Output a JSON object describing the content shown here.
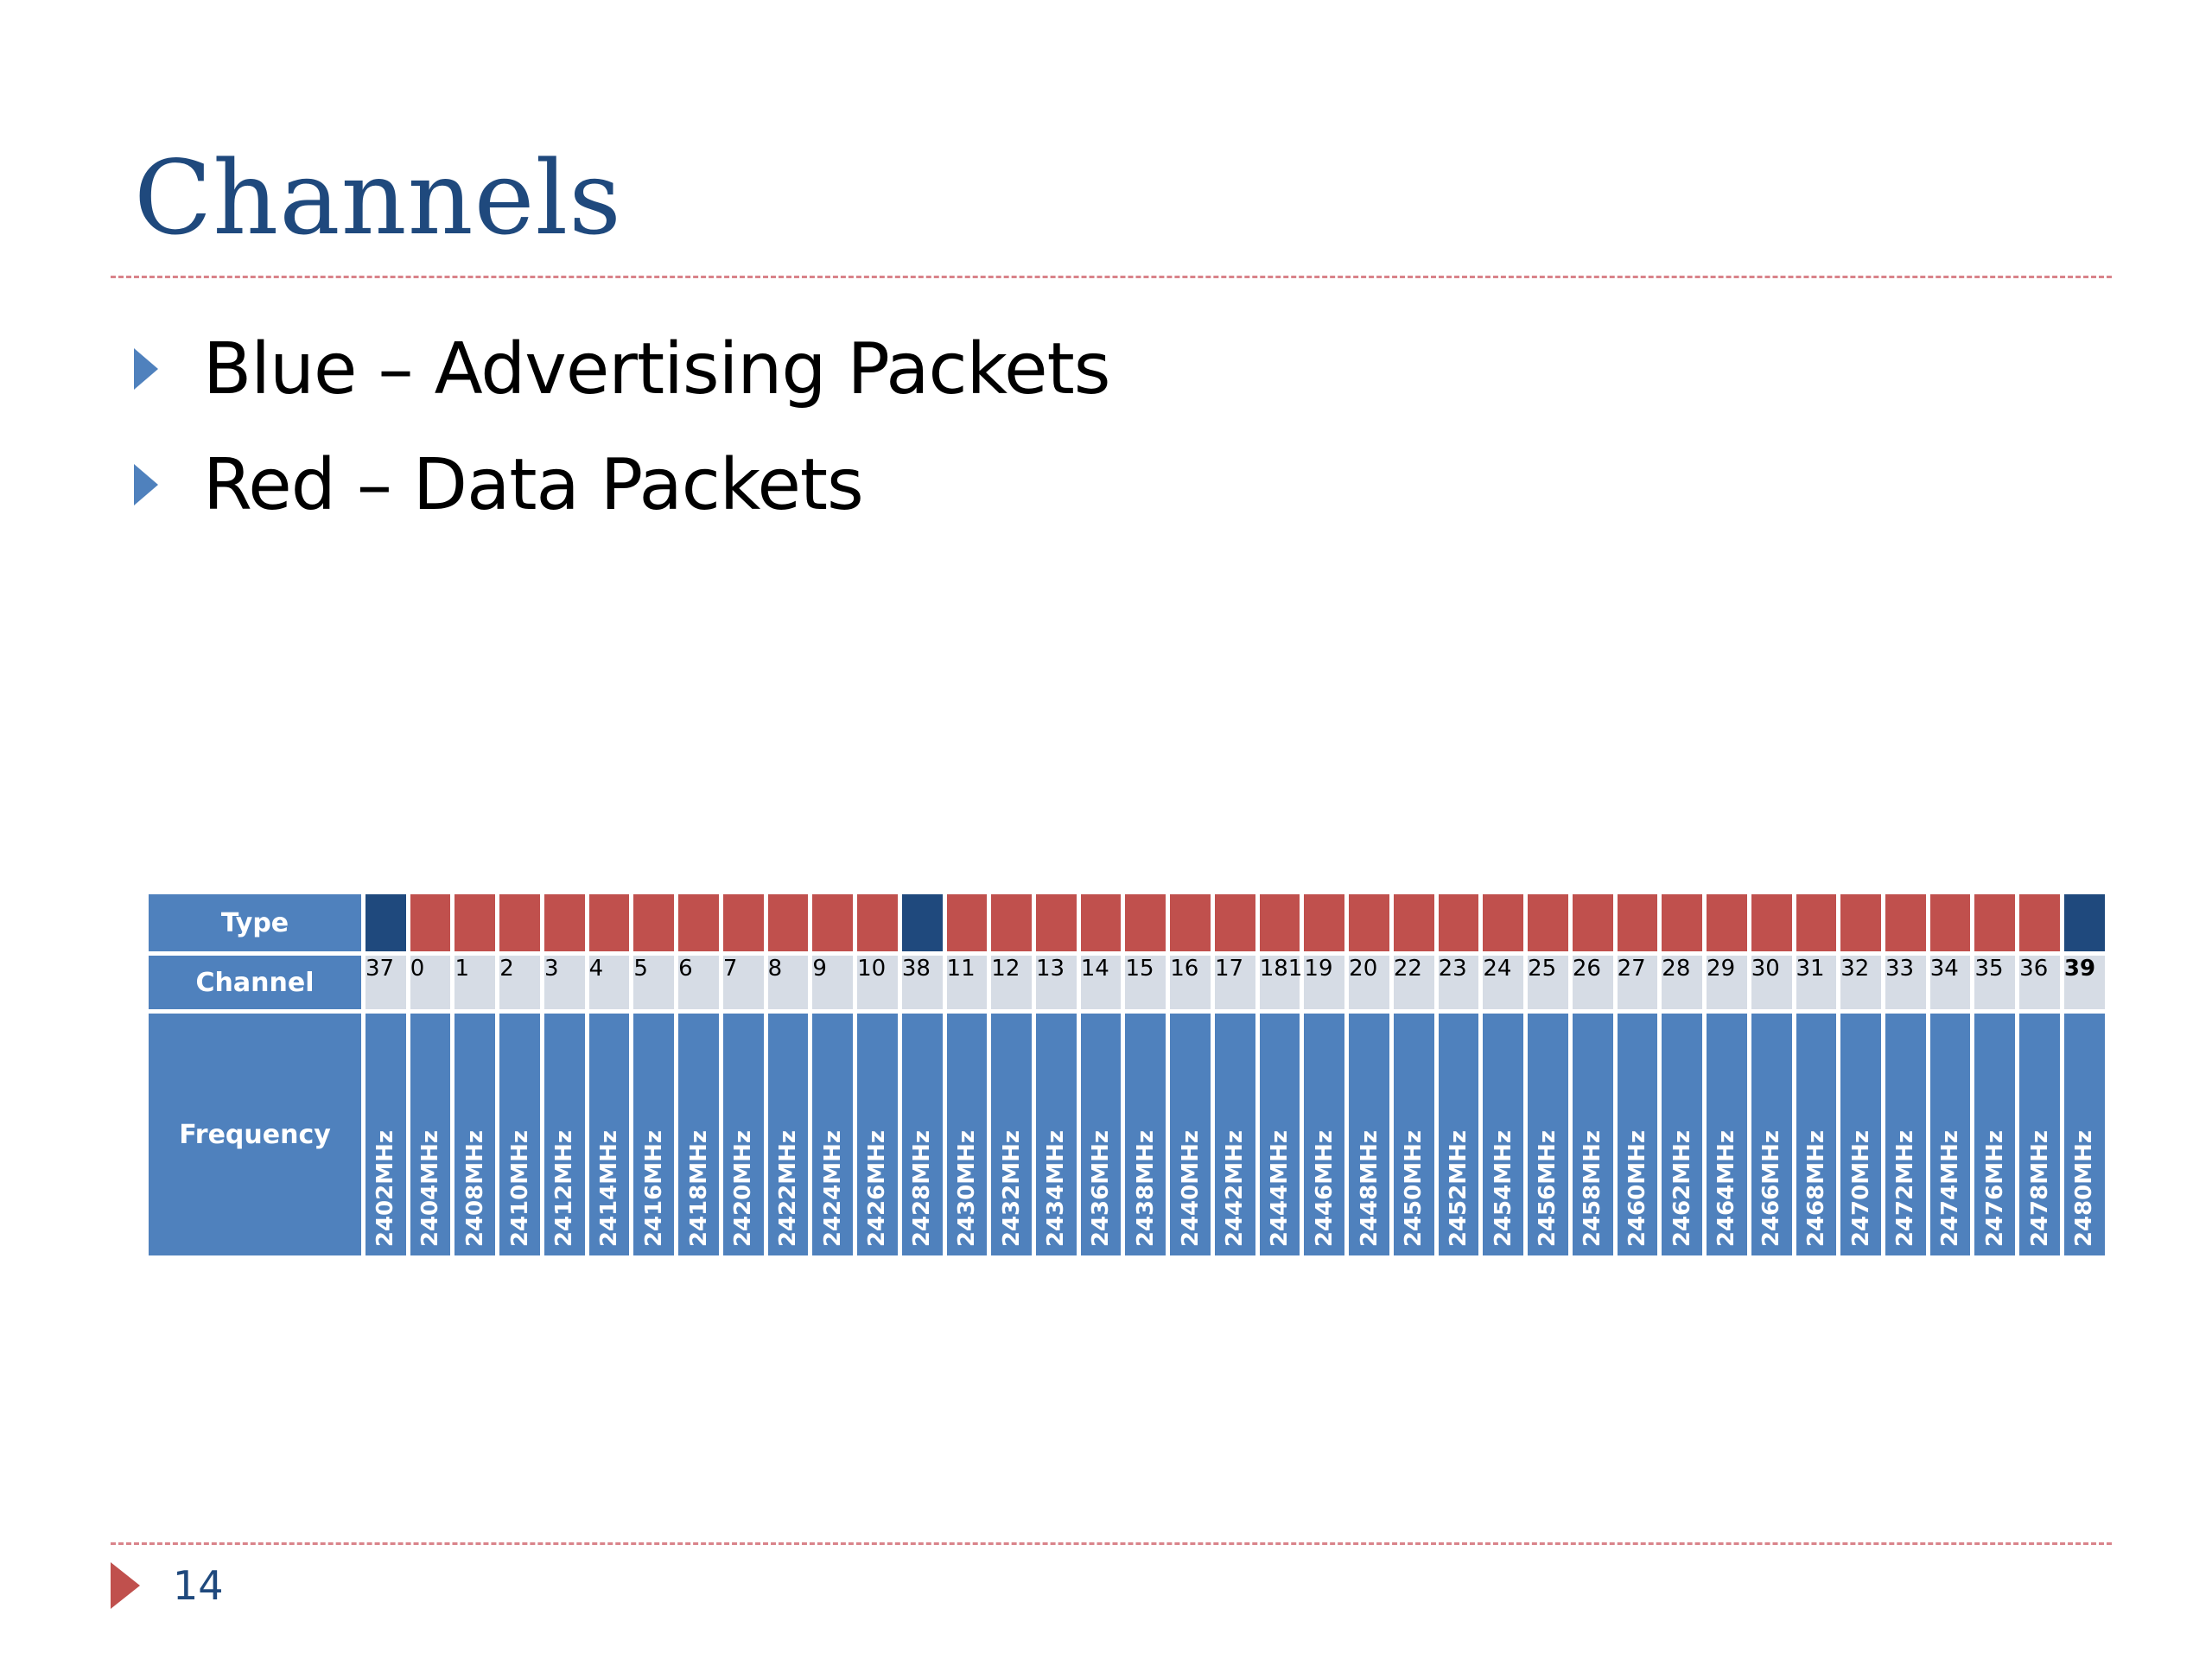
{
  "slide": {
    "title": "Channels",
    "bullets": [
      "Blue – Advertising Packets",
      "Red – Data Packets"
    ],
    "page_number": "14"
  },
  "colors": {
    "title": "#1f497d",
    "advertising": "#1f497d",
    "data": "#c0504d",
    "header": "#4f81bd",
    "channel_bg": "#d6dce5",
    "rule": "#d9838a"
  },
  "table": {
    "row_labels": {
      "type": "Type",
      "channel": "Channel",
      "frequency": "Frequency"
    },
    "columns": [
      {
        "type": "advertising",
        "channel": "37",
        "frequency": "2402MHz"
      },
      {
        "type": "data",
        "channel": "0",
        "frequency": "2404MHz"
      },
      {
        "type": "data",
        "channel": "1",
        "frequency": "2408MHz"
      },
      {
        "type": "data",
        "channel": "2",
        "frequency": "2410MHz"
      },
      {
        "type": "data",
        "channel": "3",
        "frequency": "2412MHz"
      },
      {
        "type": "data",
        "channel": "4",
        "frequency": "2414MHz"
      },
      {
        "type": "data",
        "channel": "5",
        "frequency": "2416MHz"
      },
      {
        "type": "data",
        "channel": "6",
        "frequency": "2418MHz"
      },
      {
        "type": "data",
        "channel": "7",
        "frequency": "2420MHz"
      },
      {
        "type": "data",
        "channel": "8",
        "frequency": "2422MHz"
      },
      {
        "type": "data",
        "channel": "9",
        "frequency": "2424MHz"
      },
      {
        "type": "data",
        "channel": "10",
        "frequency": "2426MHz"
      },
      {
        "type": "advertising",
        "channel": "38",
        "frequency": "2428MHz"
      },
      {
        "type": "data",
        "channel": "11",
        "frequency": "2430MHz"
      },
      {
        "type": "data",
        "channel": "12",
        "frequency": "2432MHz"
      },
      {
        "type": "data",
        "channel": "13",
        "frequency": "2434MHz"
      },
      {
        "type": "data",
        "channel": "14",
        "frequency": "2436MHz"
      },
      {
        "type": "data",
        "channel": "15",
        "frequency": "2438MHz"
      },
      {
        "type": "data",
        "channel": "16",
        "frequency": "2440MHz"
      },
      {
        "type": "data",
        "channel": "17",
        "frequency": "2442MHz"
      },
      {
        "type": "data",
        "channel": "181",
        "frequency": "2444MHz"
      },
      {
        "type": "data",
        "channel": "19",
        "frequency": "2446MHz"
      },
      {
        "type": "data",
        "channel": "20",
        "frequency": "2448MHz"
      },
      {
        "type": "data",
        "channel": "22",
        "frequency": "2450MHz"
      },
      {
        "type": "data",
        "channel": "23",
        "frequency": "2452MHz"
      },
      {
        "type": "data",
        "channel": "24",
        "frequency": "2454MHz"
      },
      {
        "type": "data",
        "channel": "25",
        "frequency": "2456MHz"
      },
      {
        "type": "data",
        "channel": "26",
        "frequency": "2458MHz"
      },
      {
        "type": "data",
        "channel": "27",
        "frequency": "2460MHz"
      },
      {
        "type": "data",
        "channel": "28",
        "frequency": "2462MHz"
      },
      {
        "type": "data",
        "channel": "29",
        "frequency": "2464MHz"
      },
      {
        "type": "data",
        "channel": "30",
        "frequency": "2466MHz"
      },
      {
        "type": "data",
        "channel": "31",
        "frequency": "2468MHz"
      },
      {
        "type": "data",
        "channel": "32",
        "frequency": "2470MHz"
      },
      {
        "type": "data",
        "channel": "33",
        "frequency": "2472MHz"
      },
      {
        "type": "data",
        "channel": "34",
        "frequency": "2474MHz"
      },
      {
        "type": "data",
        "channel": "35",
        "frequency": "2476MHz"
      },
      {
        "type": "data",
        "channel": "36",
        "frequency": "2478MHz"
      },
      {
        "type": "advertising",
        "channel": "39",
        "frequency": "2480MHz",
        "bold": true
      }
    ]
  }
}
